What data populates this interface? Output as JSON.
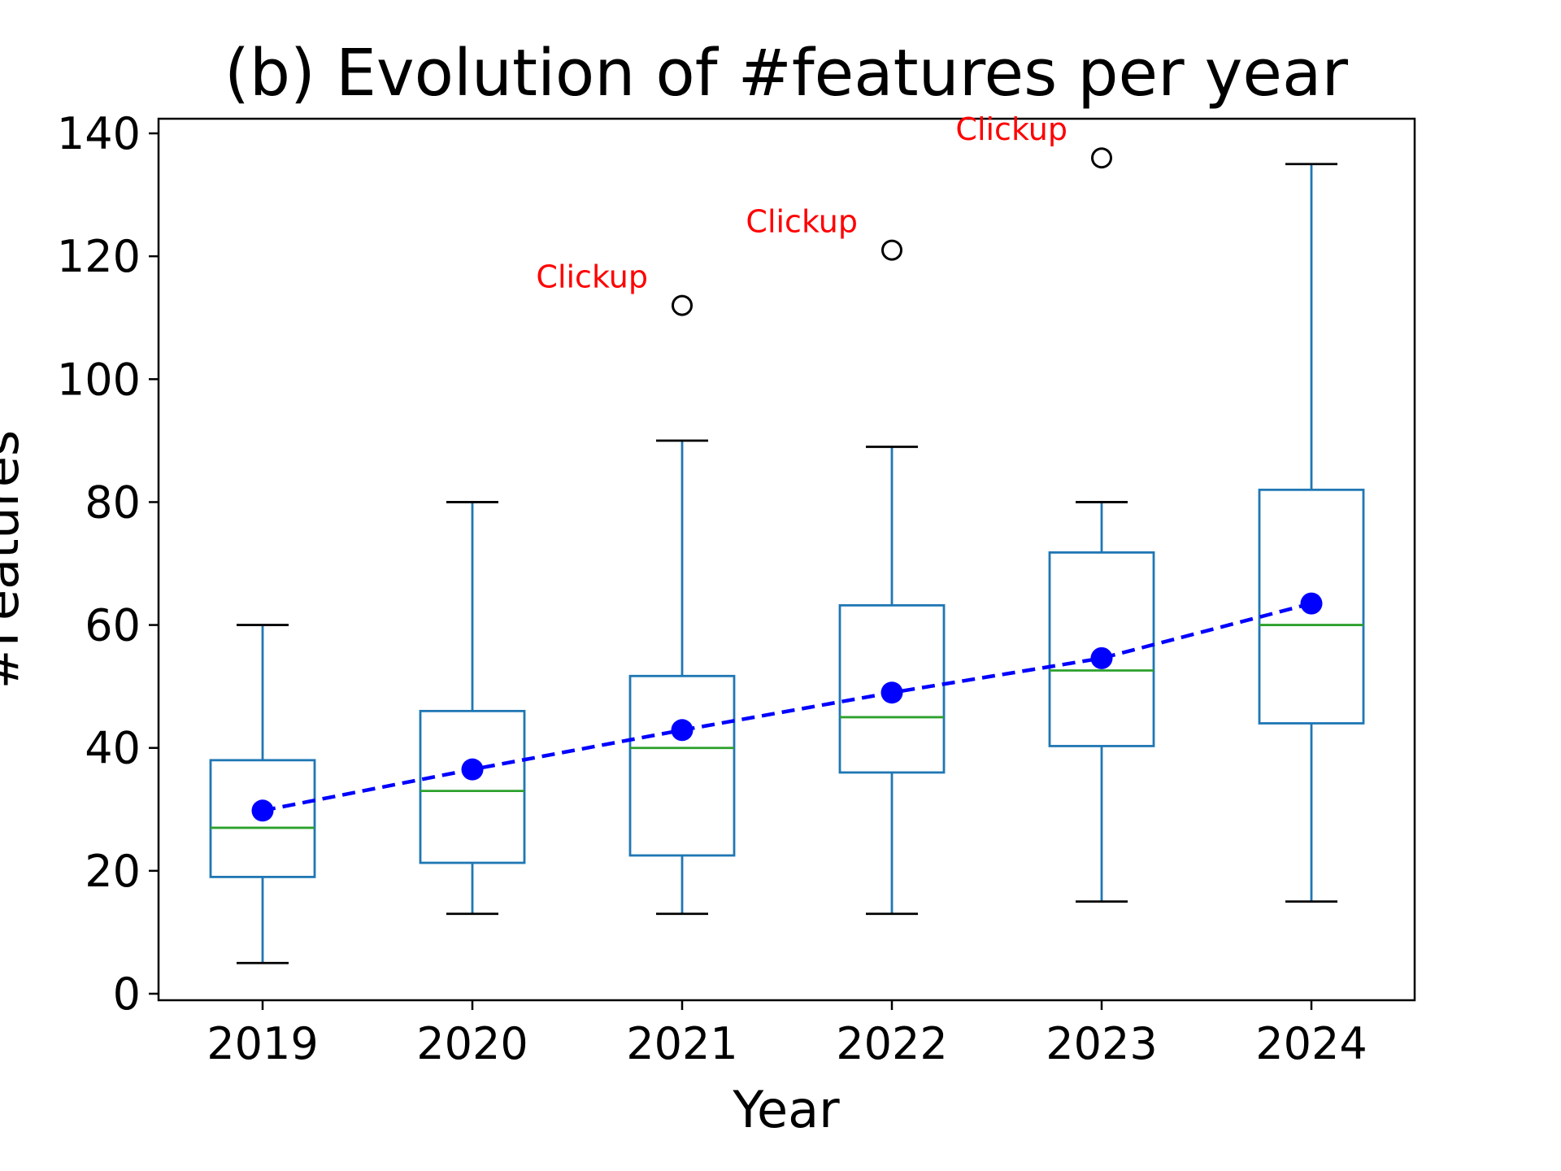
{
  "chart_data": {
    "type": "box",
    "title": "(b) Evolution of #features per year",
    "xlabel": "Year",
    "ylabel": "#Features",
    "categories": [
      "2019",
      "2020",
      "2021",
      "2022",
      "2023",
      "2024"
    ],
    "ylim": [
      -2,
      142
    ],
    "yticks": [
      0,
      20,
      40,
      60,
      80,
      100,
      120,
      140
    ],
    "grid": false,
    "boxes": [
      {
        "year": "2019",
        "whisker_low": 5,
        "q1": 19,
        "median": 27,
        "q3": 38,
        "whisker_high": 60,
        "mean": 29.8,
        "outliers": []
      },
      {
        "year": "2020",
        "whisker_low": 13,
        "q1": 21.3,
        "median": 33,
        "q3": 46,
        "whisker_high": 80,
        "mean": 36.5,
        "outliers": []
      },
      {
        "year": "2021",
        "whisker_low": 13,
        "q1": 22.5,
        "median": 40,
        "q3": 51.7,
        "whisker_high": 90,
        "mean": 42.9,
        "outliers": [
          112
        ]
      },
      {
        "year": "2022",
        "whisker_low": 13,
        "q1": 36,
        "median": 45,
        "q3": 63.2,
        "whisker_high": 89,
        "mean": 49,
        "outliers": [
          121
        ]
      },
      {
        "year": "2023",
        "whisker_low": 15,
        "q1": 40.3,
        "median": 52.6,
        "q3": 71.8,
        "whisker_high": 80,
        "mean": 54.6,
        "outliers": [
          136
        ]
      },
      {
        "year": "2024",
        "whisker_low": 15,
        "q1": 44,
        "median": 60,
        "q3": 82,
        "whisker_high": 135,
        "mean": 63.5,
        "outliers": []
      }
    ],
    "mean_series": {
      "values": [
        29.8,
        36.5,
        42.9,
        49,
        54.6,
        63.5
      ],
      "color": "#0000ff",
      "line_style": "dashed"
    },
    "annotations": [
      {
        "text": "Clickup",
        "year": "2021",
        "value": 112
      },
      {
        "text": "Clickup",
        "year": "2022",
        "value": 121
      },
      {
        "text": "Clickup",
        "year": "2023",
        "value": 136
      }
    ],
    "colors": {
      "box": "#1f77b4",
      "median": "#2ca02c",
      "mean": "#0000ff",
      "annotation": "#ff0000",
      "outlier": "#000000"
    }
  }
}
